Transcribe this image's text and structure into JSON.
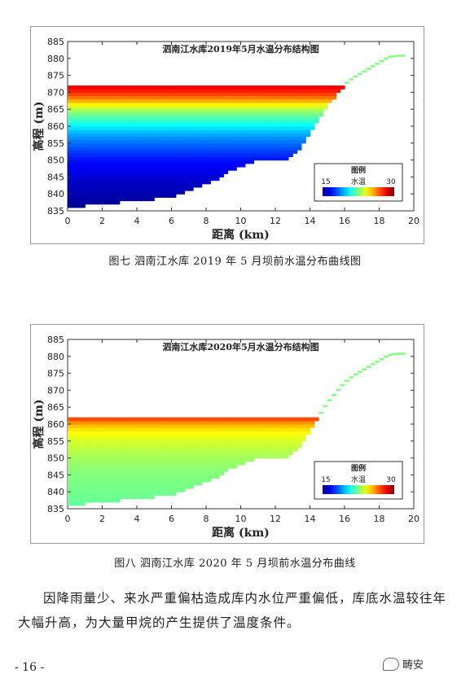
{
  "chart_data": [
    {
      "type": "heatmap",
      "title": "泗南江水库2019年5月水温分布结构图",
      "xlabel": "距离 (km)",
      "ylabel": "高程 (m)",
      "xlim": [
        0,
        20
      ],
      "ylim": [
        835,
        885
      ],
      "xticks": [
        0,
        2,
        4,
        6,
        8,
        10,
        12,
        14,
        16,
        18,
        20
      ],
      "yticks": [
        835,
        840,
        845,
        850,
        855,
        860,
        865,
        870,
        875,
        880,
        885
      ],
      "surface_level": 872,
      "bed_profile": {
        "x": [
          0,
          1,
          2,
          3,
          4,
          5,
          6,
          6.5,
          7,
          7.5,
          8,
          8.5,
          9,
          9.5,
          10,
          10.5,
          11,
          12,
          12.5,
          13,
          13.5,
          14,
          14.5,
          15,
          15.5,
          16,
          16.5,
          17,
          17.5,
          18,
          18.5,
          19,
          19.5
        ],
        "y": [
          836,
          836.5,
          837,
          837.5,
          838,
          838.5,
          839,
          840,
          841,
          842,
          843,
          844,
          845.5,
          847,
          848,
          849,
          850,
          850,
          850,
          851,
          854,
          858,
          862,
          866,
          869,
          872,
          874,
          875.5,
          877,
          878.5,
          880,
          880.5,
          880.5
        ]
      },
      "colorbar": {
        "title": "图例",
        "label": "水温",
        "min": 15,
        "max": 30
      },
      "temperature_profile": {
        "elevation": [
          872,
          870,
          868,
          866,
          864,
          862,
          860,
          858,
          856,
          854,
          852,
          850,
          848,
          846,
          844,
          842,
          840,
          838,
          836
        ],
        "temperature": [
          28.5,
          27.5,
          26,
          24,
          22.5,
          21.5,
          20.5,
          19.5,
          18.8,
          18.2,
          17.6,
          17.1,
          16.7,
          16.4,
          16.1,
          15.9,
          15.7,
          15.5,
          15.3
        ]
      },
      "caption": "图七  泗南江水库 2019 年 5 月坝前水温分布曲线图"
    },
    {
      "type": "heatmap",
      "title": "泗南江水库2020年5月水温分布结构图",
      "xlabel": "距离 (km)",
      "ylabel": "高程 (m)",
      "xlim": [
        0,
        20
      ],
      "ylim": [
        835,
        885
      ],
      "xticks": [
        0,
        2,
        4,
        6,
        8,
        10,
        12,
        14,
        16,
        18,
        20
      ],
      "yticks": [
        835,
        840,
        845,
        850,
        855,
        860,
        865,
        870,
        875,
        880,
        885
      ],
      "surface_level": 862,
      "bed_profile": {
        "x": [
          0,
          1,
          2,
          3,
          4,
          5,
          6,
          6.5,
          7,
          7.5,
          8,
          8.5,
          9,
          9.5,
          10,
          10.5,
          11,
          12,
          12.5,
          13,
          13.5,
          14,
          14.5,
          15,
          15.5,
          16,
          16.5,
          17,
          17.5,
          18,
          18.5,
          19,
          19.5
        ],
        "y": [
          836,
          836.5,
          837,
          837.5,
          838,
          838.5,
          839,
          840,
          841,
          842,
          843,
          844,
          845.5,
          847,
          848,
          849,
          850,
          850,
          850,
          851,
          854,
          858,
          862,
          866,
          869,
          872,
          874,
          875.5,
          877,
          878.5,
          880,
          880.5,
          880.5
        ]
      },
      "colorbar": {
        "title": "图例",
        "label": "水温",
        "min": 15,
        "max": 30
      },
      "temperature_profile": {
        "elevation": [
          862,
          860,
          858,
          856,
          854,
          852,
          850,
          848,
          846,
          844,
          842,
          840,
          838,
          836
        ],
        "temperature": [
          27.5,
          25.5,
          24.5,
          24,
          23.6,
          23.3,
          23,
          22.8,
          22.6,
          22.5,
          22.4,
          22.3,
          22.2,
          22.1
        ]
      },
      "caption": "图八  泗南江水库 2020 年 5 月坝前水温分布曲线"
    }
  ],
  "paragraph": "因降雨量少、来水严重偏枯造成库内水位严重偏低，库底水温较往年大幅升高，为大量甲烷的产生提供了温度条件。",
  "page_number": "- 16 -",
  "watermark": "畴安"
}
